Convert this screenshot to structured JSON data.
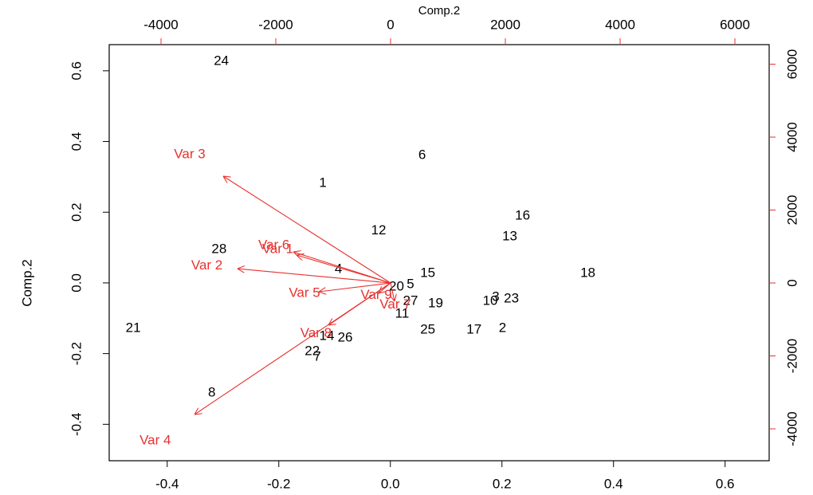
{
  "chart_data": {
    "type": "biplot",
    "xlabel_top": "Comp.2",
    "ylabel": "Comp.2",
    "point_color": "#000000",
    "arrow_color": "#e8312f",
    "xlim": [
      -0.504,
      0.679
    ],
    "ylim": [
      -0.503,
      0.674
    ],
    "xticks": [
      -0.4,
      -0.2,
      {
        "value": 0,
        "label": "0.0"
      },
      0.2,
      0.4,
      0.6
    ],
    "yticks": [
      -0.4,
      -0.2,
      {
        "value": 0,
        "label": "0.0"
      },
      0.2,
      0.4,
      0.6
    ],
    "x2lim": [
      -4903,
      6597
    ],
    "y2lim": [
      -4874,
      6536
    ],
    "x2ticks": [
      -4000,
      -2000,
      0,
      2000,
      4000,
      6000
    ],
    "y2ticks": [
      -4000,
      -2000,
      0,
      2000,
      4000,
      6000
    ],
    "points": {
      "labels": [
        "24",
        "6",
        "1",
        "16",
        "12",
        "13",
        "28",
        "4",
        "15",
        "18",
        "20",
        "5",
        "3",
        "23",
        "10",
        "27",
        "19",
        "11",
        "21",
        "25",
        "17",
        "2",
        "14",
        "26",
        "22",
        "7",
        "8"
      ],
      "x": [
        -0.303,
        0.057,
        -0.121,
        0.237,
        -0.021,
        0.214,
        -0.307,
        -0.093,
        0.067,
        0.354,
        0.011,
        0.036,
        0.189,
        0.217,
        0.179,
        0.036,
        0.081,
        0.021,
        -0.461,
        0.067,
        0.15,
        0.201,
        -0.114,
        -0.081,
        -0.14,
        -0.131,
        -0.32
      ],
      "y": [
        0.627,
        0.361,
        0.282,
        0.189,
        0.147,
        0.131,
        0.095,
        0.038,
        0.027,
        0.027,
        -0.011,
        -0.005,
        -0.041,
        -0.045,
        -0.052,
        -0.052,
        -0.059,
        -0.088,
        -0.129,
        -0.133,
        -0.133,
        -0.129,
        -0.151,
        -0.156,
        -0.194,
        -0.21,
        -0.311
      ]
    },
    "arrows": {
      "names": [
        "Var 1",
        "Var 2",
        "Var 3",
        "Var 4",
        "Var 5",
        "Var 6",
        "Var 7",
        "Var 8",
        "Var 9"
      ],
      "x": [
        -1639,
        -2667,
        -2917,
        -3417,
        -1250,
        -1694,
        69,
        -1083,
        -208
      ],
      "y": [
        765,
        393,
        2929,
        -3607,
        -240,
        852,
        -503,
        -1158,
        -284
      ]
    }
  }
}
